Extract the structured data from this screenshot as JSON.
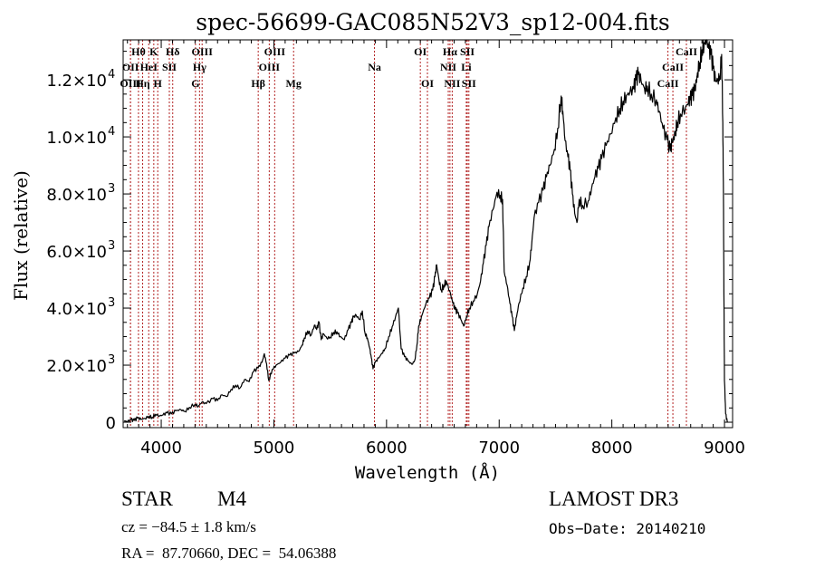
{
  "chart_data": {
    "type": "line",
    "title": "spec-56699-GAC085N52V3_sp12-004.fits",
    "xlabel": "Wavelength (Å)",
    "ylabel": "Flux (relative)",
    "xlim": [
      3662,
      9072
    ],
    "ylim": [
      -190,
      13400
    ],
    "grid": false,
    "x_ticks": [
      {
        "value": 4000,
        "label": "4000"
      },
      {
        "value": 5000,
        "label": "5000"
      },
      {
        "value": 6000,
        "label": "6000"
      },
      {
        "value": 7000,
        "label": "7000"
      },
      {
        "value": 8000,
        "label": "8000"
      },
      {
        "value": 9000,
        "label": "9000"
      }
    ],
    "y_ticks": [
      {
        "value": 0,
        "label": "0",
        "exp": ""
      },
      {
        "value": 2000,
        "label": "2.0×10",
        "exp": "3"
      },
      {
        "value": 4000,
        "label": "4.0×10",
        "exp": "3"
      },
      {
        "value": 6000,
        "label": "6.0×10",
        "exp": "3"
      },
      {
        "value": 8000,
        "label": "8.0×10",
        "exp": "3"
      },
      {
        "value": 10000,
        "label": "1.0×10",
        "exp": "4"
      },
      {
        "value": 12000,
        "label": "1.2×10",
        "exp": "4"
      }
    ],
    "series": [
      {
        "name": "spectrum",
        "color": "#000000",
        "x": [
          3670,
          3700,
          3730,
          3760,
          3790,
          3820,
          3855,
          3890,
          3920,
          3950,
          3985,
          4015,
          4050,
          4090,
          4130,
          4175,
          4210,
          4250,
          4300,
          4330,
          4360,
          4400,
          4460,
          4500,
          4540,
          4580,
          4620,
          4660,
          4700,
          4740,
          4780,
          4820,
          4860,
          4895,
          4915,
          4935,
          4955,
          4985,
          5020,
          5060,
          5100,
          5140,
          5180,
          5220,
          5250,
          5270,
          5300,
          5330,
          5360,
          5380,
          5400,
          5420,
          5440,
          5470,
          5500,
          5530,
          5560,
          5590,
          5625,
          5660,
          5690,
          5705,
          5730,
          5760,
          5785,
          5810,
          5830,
          5850,
          5865,
          5880,
          5900,
          5930,
          5960,
          5985,
          6020,
          6050,
          6080,
          6105,
          6130,
          6160,
          6190,
          6225,
          6250,
          6270,
          6285,
          6310,
          6350,
          6380,
          6410,
          6430,
          6445,
          6465,
          6485,
          6510,
          6530,
          6560,
          6590,
          6610,
          6630,
          6660,
          6685,
          6710,
          6735,
          6770,
          6805,
          6835,
          6860,
          6885,
          6910,
          6945,
          6980,
          7010,
          7030,
          7045,
          7070,
          7095,
          7115,
          7135,
          7155,
          7175,
          7210,
          7240,
          7270,
          7290,
          7310,
          7350,
          7390,
          7420,
          7450,
          7490,
          7520,
          7550,
          7565,
          7585,
          7610,
          7630,
          7650,
          7670,
          7690,
          7710,
          7740,
          7790,
          7820,
          7850,
          7880,
          7910,
          7950,
          7990,
          8035,
          8070,
          8100,
          8130,
          8160,
          8195,
          8215,
          8235,
          8260,
          8290,
          8315,
          8350,
          8395,
          8420,
          8455,
          8490,
          8520,
          8535,
          8550,
          8565,
          8580,
          8610,
          8655,
          8680,
          8695,
          8715,
          8735,
          8750,
          8760,
          8780,
          8800,
          8820,
          8840,
          8860,
          8880,
          8900,
          8920,
          8940,
          8960,
          8975,
          8985,
          8990,
          8995,
          9000,
          9010,
          9025
        ],
        "y": [
          50,
          20,
          90,
          60,
          150,
          100,
          130,
          210,
          170,
          280,
          220,
          250,
          330,
          290,
          400,
          440,
          380,
          520,
          630,
          560,
          700,
          650,
          830,
          760,
          960,
          900,
          1150,
          1300,
          1200,
          1500,
          1420,
          1780,
          1900,
          2100,
          2400,
          2050,
          1460,
          1850,
          2000,
          2100,
          2250,
          2350,
          2420,
          2480,
          2700,
          2950,
          3200,
          3050,
          3400,
          3250,
          3520,
          2890,
          3100,
          2950,
          2980,
          3150,
          3170,
          3000,
          2890,
          3250,
          3500,
          3680,
          3750,
          3600,
          3900,
          3110,
          2950,
          2600,
          2250,
          1870,
          2100,
          2250,
          2420,
          2570,
          3000,
          3350,
          3700,
          4000,
          2570,
          2300,
          2150,
          2030,
          2160,
          2700,
          3370,
          3700,
          4160,
          4350,
          4630,
          5100,
          5520,
          5000,
          4630,
          4800,
          4950,
          4600,
          4160,
          3950,
          3840,
          3600,
          3370,
          3700,
          4000,
          4250,
          4480,
          4950,
          5590,
          6200,
          6860,
          7450,
          8060,
          7950,
          7810,
          5270,
          4800,
          4160,
          3700,
          3210,
          3700,
          4160,
          4700,
          5100,
          5590,
          6300,
          7170,
          7700,
          8130,
          8600,
          9000,
          9560,
          10300,
          11430,
          10900,
          9870,
          9300,
          8830,
          8000,
          7330,
          7000,
          7810,
          7600,
          7750,
          8200,
          8600,
          8900,
          9240,
          9700,
          10100,
          10670,
          11000,
          11250,
          11460,
          11550,
          11680,
          12000,
          12190,
          11950,
          11700,
          11780,
          11500,
          11300,
          10900,
          10290,
          9900,
          9520,
          9800,
          9970,
          10200,
          10510,
          10800,
          11050,
          11200,
          11300,
          11450,
          11620,
          11900,
          12250,
          12600,
          13050,
          13300,
          13400,
          13100,
          12890,
          12400,
          11940,
          12000,
          12130,
          12890,
          10500,
          8440,
          4500,
          1460,
          300,
          0
        ]
      }
    ],
    "line_markers": [
      {
        "label": "Hθ",
        "wavelength": 3798,
        "row": 1
      },
      {
        "label": "K",
        "wavelength": 3934,
        "row": 1
      },
      {
        "label": "Hδ",
        "wavelength": 4102,
        "row": 1
      },
      {
        "label": "OIII",
        "wavelength": 4363,
        "row": 1
      },
      {
        "label": "OIII",
        "wavelength": 5007,
        "row": 1
      },
      {
        "label": "OI",
        "wavelength": 6300,
        "row": 1
      },
      {
        "label": "Hα",
        "wavelength": 6563,
        "row": 1
      },
      {
        "label": "SII",
        "wavelength": 6717,
        "row": 1
      },
      {
        "label": "CaII",
        "wavelength": 8662,
        "row": 1
      },
      {
        "label": "OII",
        "wavelength": 3727,
        "row": 2
      },
      {
        "label": "HeI",
        "wavelength": 3889,
        "row": 2
      },
      {
        "label": "SII",
        "wavelength": 4072,
        "row": 2
      },
      {
        "label": "Hγ",
        "wavelength": 4340,
        "row": 2
      },
      {
        "label": "OIII",
        "wavelength": 4959,
        "row": 2
      },
      {
        "label": "Na",
        "wavelength": 5893,
        "row": 2
      },
      {
        "label": "NII",
        "wavelength": 6548,
        "row": 2
      },
      {
        "label": "Li",
        "wavelength": 6708,
        "row": 2
      },
      {
        "label": "CaII",
        "wavelength": 8542,
        "row": 2
      },
      {
        "label": "OIII",
        "wavelength": 3727,
        "row": 3
      },
      {
        "label": "Hη",
        "wavelength": 3835,
        "row": 3
      },
      {
        "label": "H",
        "wavelength": 3969,
        "row": 3
      },
      {
        "label": "G",
        "wavelength": 4304,
        "row": 3
      },
      {
        "label": "Hβ",
        "wavelength": 4861,
        "row": 3
      },
      {
        "label": "Mg",
        "wavelength": 5175,
        "row": 3
      },
      {
        "label": "OI",
        "wavelength": 6363,
        "row": 3
      },
      {
        "label": "NII",
        "wavelength": 6583,
        "row": 3
      },
      {
        "label": "SII",
        "wavelength": 6731,
        "row": 3
      },
      {
        "label": "CaII",
        "wavelength": 8498,
        "row": 3
      }
    ],
    "marker_color": "#b22222"
  },
  "info": {
    "object_class": "STAR",
    "subclass": "M4",
    "survey": "LAMOST DR3",
    "redshift": "cz = −84.5 ± 1.8 km/s",
    "obs_date": "Obs−Date: 20140210",
    "coords": "RA =  87.70660, DEC =  54.06388"
  }
}
